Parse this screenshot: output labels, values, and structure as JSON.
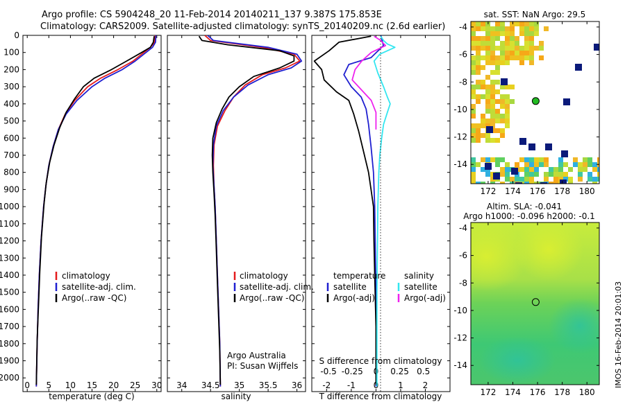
{
  "header": {
    "line1": "Argo profile: CS 5904248_20 11-Feb-2014 20140211_137 9.387S 175.853E",
    "line2": "Climatology: CARS2009. Satellite-adjusted climatology: synTS_20140209.nc (2.6d earlier)"
  },
  "colors": {
    "climatology": "#e41a1c",
    "satellite": "#1f1fd0",
    "argo": "#000000",
    "sal_satellite": "#33e6f0",
    "sal_argo": "#ee22ee",
    "marker": "#22bb22"
  },
  "chart_data": [
    {
      "type": "line",
      "title": "Temperature profile",
      "xlabel": "temperature (deg C)",
      "xlim": [
        -1,
        31
      ],
      "ylim": [
        2080,
        0
      ],
      "xticks": [
        0,
        5,
        10,
        15,
        20,
        25,
        30
      ],
      "xtick_labels": [
        "0",
        "5",
        "10",
        "15",
        "20",
        "25",
        "30"
      ],
      "yticks": [
        0,
        100,
        200,
        300,
        400,
        500,
        600,
        700,
        800,
        900,
        1000,
        1100,
        1200,
        1300,
        1400,
        1500,
        1600,
        1700,
        1800,
        1900,
        2000
      ],
      "ytick_labels": [
        "0",
        "100",
        "200",
        "300",
        "400",
        "500",
        "600",
        "700",
        "800",
        "900",
        "1000",
        "1100",
        "1200",
        "1300",
        "1400",
        "1500",
        "1600",
        "1700",
        "1800",
        "1900",
        "2000"
      ],
      "legend": [
        "climatology",
        "satellite-adj. clim.",
        "Argo(..raw -QC)"
      ],
      "series": [
        {
          "name": "climatology",
          "color": "#e41a1c",
          "points": [
            [
              29.6,
              0
            ],
            [
              29.5,
              40
            ],
            [
              28.5,
              70
            ],
            [
              26.5,
              110
            ],
            [
              24.5,
              150
            ],
            [
              21,
              200
            ],
            [
              17,
              250
            ],
            [
              14,
              300
            ],
            [
              11,
              380
            ],
            [
              8.8,
              460
            ],
            [
              7.2,
              550
            ],
            [
              6,
              650
            ],
            [
              5,
              760
            ],
            [
              4.3,
              880
            ],
            [
              3.8,
              1000
            ],
            [
              3.2,
              1200
            ],
            [
              2.8,
              1400
            ],
            [
              2.5,
              1600
            ],
            [
              2.3,
              1800
            ],
            [
              2.1,
              2050
            ]
          ]
        },
        {
          "name": "satellite-adj. clim.",
          "color": "#1f1fd0",
          "points": [
            [
              29.8,
              0
            ],
            [
              29.7,
              40
            ],
            [
              29,
              70
            ],
            [
              27,
              110
            ],
            [
              25,
              150
            ],
            [
              22,
              200
            ],
            [
              18,
              250
            ],
            [
              15,
              300
            ],
            [
              11.5,
              380
            ],
            [
              9,
              460
            ],
            [
              7.2,
              550
            ],
            [
              6,
              650
            ],
            [
              5,
              760
            ],
            [
              4.3,
              880
            ],
            [
              3.8,
              1000
            ],
            [
              3.2,
              1200
            ],
            [
              2.8,
              1400
            ],
            [
              2.5,
              1600
            ],
            [
              2.3,
              1800
            ],
            [
              2.1,
              2050
            ]
          ]
        },
        {
          "name": "Argo(..raw -QC)",
          "color": "#000000",
          "points": [
            [
              29.4,
              5
            ],
            [
              29.2,
              40
            ],
            [
              28.5,
              70
            ],
            [
              26.5,
              100
            ],
            [
              23,
              150
            ],
            [
              19.5,
              200
            ],
            [
              15.5,
              250
            ],
            [
              13,
              300
            ],
            [
              11,
              370
            ],
            [
              9,
              450
            ],
            [
              7.5,
              540
            ],
            [
              6.2,
              640
            ],
            [
              5.2,
              740
            ],
            [
              4.4,
              860
            ],
            [
              3.9,
              980
            ],
            [
              3.3,
              1180
            ],
            [
              2.9,
              1380
            ],
            [
              2.6,
              1580
            ],
            [
              2.3,
              1780
            ],
            [
              2.1,
              2040
            ]
          ]
        }
      ]
    },
    {
      "type": "line",
      "title": "Salinity profile",
      "xlabel": "salinity",
      "xlim": [
        33.75,
        36.15
      ],
      "ylim": [
        2080,
        0
      ],
      "xticks": [
        34,
        34.5,
        35,
        35.5,
        36
      ],
      "xtick_labels": [
        "34",
        "34.5",
        "35",
        "35.5",
        "36"
      ],
      "legend": [
        "climatology",
        "satellite-adj. clim.",
        "Argo(..raw -QC)"
      ],
      "annotation": [
        "Argo Australia",
        "PI: Susan Wijffels"
      ],
      "series": [
        {
          "name": "climatology",
          "color": "#e41a1c",
          "points": [
            [
              34.4,
              0
            ],
            [
              34.5,
              30
            ],
            [
              35.4,
              70
            ],
            [
              35.95,
              110
            ],
            [
              36.05,
              150
            ],
            [
              35.8,
              190
            ],
            [
              35.4,
              230
            ],
            [
              35.1,
              290
            ],
            [
              34.9,
              360
            ],
            [
              34.75,
              440
            ],
            [
              34.62,
              530
            ],
            [
              34.56,
              640
            ],
            [
              34.55,
              760
            ],
            [
              34.56,
              880
            ],
            [
              34.58,
              1000
            ],
            [
              34.6,
              1200
            ],
            [
              34.62,
              1400
            ],
            [
              34.64,
              1600
            ],
            [
              34.66,
              1800
            ],
            [
              34.67,
              2050
            ]
          ]
        },
        {
          "name": "satellite-adj. clim.",
          "color": "#1f1fd0",
          "points": [
            [
              34.45,
              0
            ],
            [
              34.55,
              30
            ],
            [
              35.5,
              70
            ],
            [
              36.0,
              110
            ],
            [
              36.08,
              150
            ],
            [
              35.9,
              190
            ],
            [
              35.5,
              230
            ],
            [
              35.15,
              290
            ],
            [
              34.9,
              360
            ],
            [
              34.72,
              440
            ],
            [
              34.6,
              530
            ],
            [
              34.55,
              640
            ],
            [
              34.54,
              760
            ],
            [
              34.56,
              880
            ],
            [
              34.58,
              1000
            ],
            [
              34.6,
              1200
            ],
            [
              34.62,
              1400
            ],
            [
              34.64,
              1600
            ],
            [
              34.66,
              1800
            ],
            [
              34.67,
              2050
            ]
          ]
        },
        {
          "name": "Argo(..raw -QC)",
          "color": "#000000",
          "points": [
            [
              34.3,
              5
            ],
            [
              34.35,
              30
            ],
            [
              34.8,
              55
            ],
            [
              35.7,
              90
            ],
            [
              35.95,
              120
            ],
            [
              35.95,
              150
            ],
            [
              35.7,
              190
            ],
            [
              35.25,
              240
            ],
            [
              35.0,
              300
            ],
            [
              34.82,
              360
            ],
            [
              34.7,
              430
            ],
            [
              34.6,
              510
            ],
            [
              34.54,
              600
            ],
            [
              34.53,
              700
            ],
            [
              34.54,
              800
            ],
            [
              34.56,
              920
            ],
            [
              34.58,
              1050
            ],
            [
              34.6,
              1250
            ],
            [
              34.62,
              1450
            ],
            [
              34.64,
              1650
            ],
            [
              34.66,
              1850
            ],
            [
              34.67,
              2040
            ]
          ]
        }
      ]
    },
    {
      "type": "line",
      "title": "Difference from climatology",
      "xlabel": "T difference from climatology",
      "xlabel_top": "S difference from climatology",
      "xlim": [
        -2.6,
        3.0
      ],
      "ylim": [
        2080,
        0
      ],
      "xticks": [
        -2,
        -1,
        0,
        1,
        2
      ],
      "xtick_labels": [
        "-2",
        "-1",
        "0",
        "1",
        "2"
      ],
      "sticks": [
        -0.5,
        -0.25,
        0,
        0.25,
        0.5
      ],
      "stick_labels": [
        "-0.5",
        "-0.25",
        "0",
        "0.25",
        "0.5"
      ],
      "s_scale": 0.26,
      "legend": [
        "temperature",
        "satellite",
        "Argo(-adj)",
        "salinity",
        "satellite",
        "Argo(-adj)"
      ],
      "series": [
        {
          "name": "T satellite",
          "color": "#1f1fd0",
          "kind": "T",
          "points": [
            [
              0.2,
              0
            ],
            [
              0.3,
              60
            ],
            [
              -0.2,
              130
            ],
            [
              -1.1,
              170
            ],
            [
              -1.3,
              230
            ],
            [
              -1.0,
              300
            ],
            [
              -0.6,
              360
            ],
            [
              -0.4,
              430
            ],
            [
              -0.3,
              520
            ],
            [
              -0.2,
              650
            ],
            [
              -0.1,
              800
            ],
            [
              -0.05,
              1000
            ],
            [
              0,
              1500
            ],
            [
              0,
              2050
            ]
          ]
        },
        {
          "name": "T Argo(-adj)",
          "color": "#000000",
          "kind": "T",
          "points": [
            [
              -0.2,
              5
            ],
            [
              -1.5,
              40
            ],
            [
              -1.9,
              90
            ],
            [
              -2.5,
              150
            ],
            [
              -2.2,
              200
            ],
            [
              -2.1,
              260
            ],
            [
              -1.6,
              330
            ],
            [
              -1.1,
              380
            ],
            [
              -0.9,
              460
            ],
            [
              -0.7,
              560
            ],
            [
              -0.5,
              680
            ],
            [
              -0.3,
              800
            ],
            [
              -0.2,
              900
            ],
            [
              -0.1,
              1000
            ],
            [
              -0.08,
              1200
            ],
            [
              -0.05,
              1400
            ],
            [
              0,
              1700
            ],
            [
              0,
              2040
            ]
          ]
        },
        {
          "name": "S satellite",
          "color": "#33e6f0",
          "kind": "S",
          "points": [
            [
              0.05,
              5
            ],
            [
              0.08,
              30
            ],
            [
              0.12,
              50
            ],
            [
              0.2,
              70
            ],
            [
              0.04,
              110
            ],
            [
              -0.02,
              150
            ],
            [
              0.02,
              220
            ],
            [
              0.08,
              300
            ],
            [
              0.12,
              360
            ],
            [
              0.15,
              400
            ],
            [
              0.12,
              450
            ],
            [
              0.08,
              520
            ],
            [
              0.06,
              600
            ],
            [
              0.04,
              700
            ],
            [
              0.03,
              800
            ],
            [
              0.02,
              1000
            ],
            [
              0.01,
              1500
            ],
            [
              0.01,
              1800
            ],
            [
              0.01,
              2050
            ]
          ]
        },
        {
          "name": "S Argo(-adj)",
          "color": "#ee22ee",
          "kind": "S",
          "points": [
            [
              -0.02,
              5
            ],
            [
              0.05,
              30
            ],
            [
              0.1,
              60
            ],
            [
              -0.05,
              100
            ],
            [
              -0.15,
              150
            ],
            [
              -0.22,
              200
            ],
            [
              -0.25,
              260
            ],
            [
              -0.15,
              320
            ],
            [
              -0.05,
              380
            ],
            [
              0,
              450
            ],
            [
              0,
              550
            ]
          ]
        }
      ]
    },
    {
      "type": "heatmap",
      "title": "sat. SST: NaN Argo: 29.5",
      "xlim": [
        170.6,
        181.0
      ],
      "ylim": [
        -15.4,
        -3.6
      ],
      "xticks": [
        172,
        174,
        176,
        178,
        180
      ],
      "xtick_labels": [
        "172",
        "174",
        "176",
        "178",
        "180"
      ],
      "yticks": [
        -4,
        -6,
        -8,
        -10,
        -12,
        -14
      ],
      "ytick_labels": [
        "-4",
        "-6",
        "-8",
        "-10",
        "-12",
        "-14"
      ],
      "argo_position": [
        175.853,
        -9.387
      ]
    },
    {
      "type": "heatmap",
      "title_line1": "Altim. SLA: -0.041",
      "title_line2": "Argo h1000: -0.096 h2000: -0.1",
      "xlim": [
        170.6,
        181.0
      ],
      "ylim": [
        -15.4,
        -3.6
      ],
      "xticks": [
        172,
        174,
        176,
        178,
        180
      ],
      "xtick_labels": [
        "172",
        "174",
        "176",
        "178",
        "180"
      ],
      "yticks": [
        -4,
        -6,
        -8,
        -10,
        -12,
        -14
      ],
      "ytick_labels": [
        "-4",
        "-6",
        "-8",
        "-10",
        "-12",
        "-14"
      ],
      "argo_position": [
        175.853,
        -9.387
      ]
    }
  ],
  "side_note": "IMOS 16-Feb-2014 20:01:03"
}
